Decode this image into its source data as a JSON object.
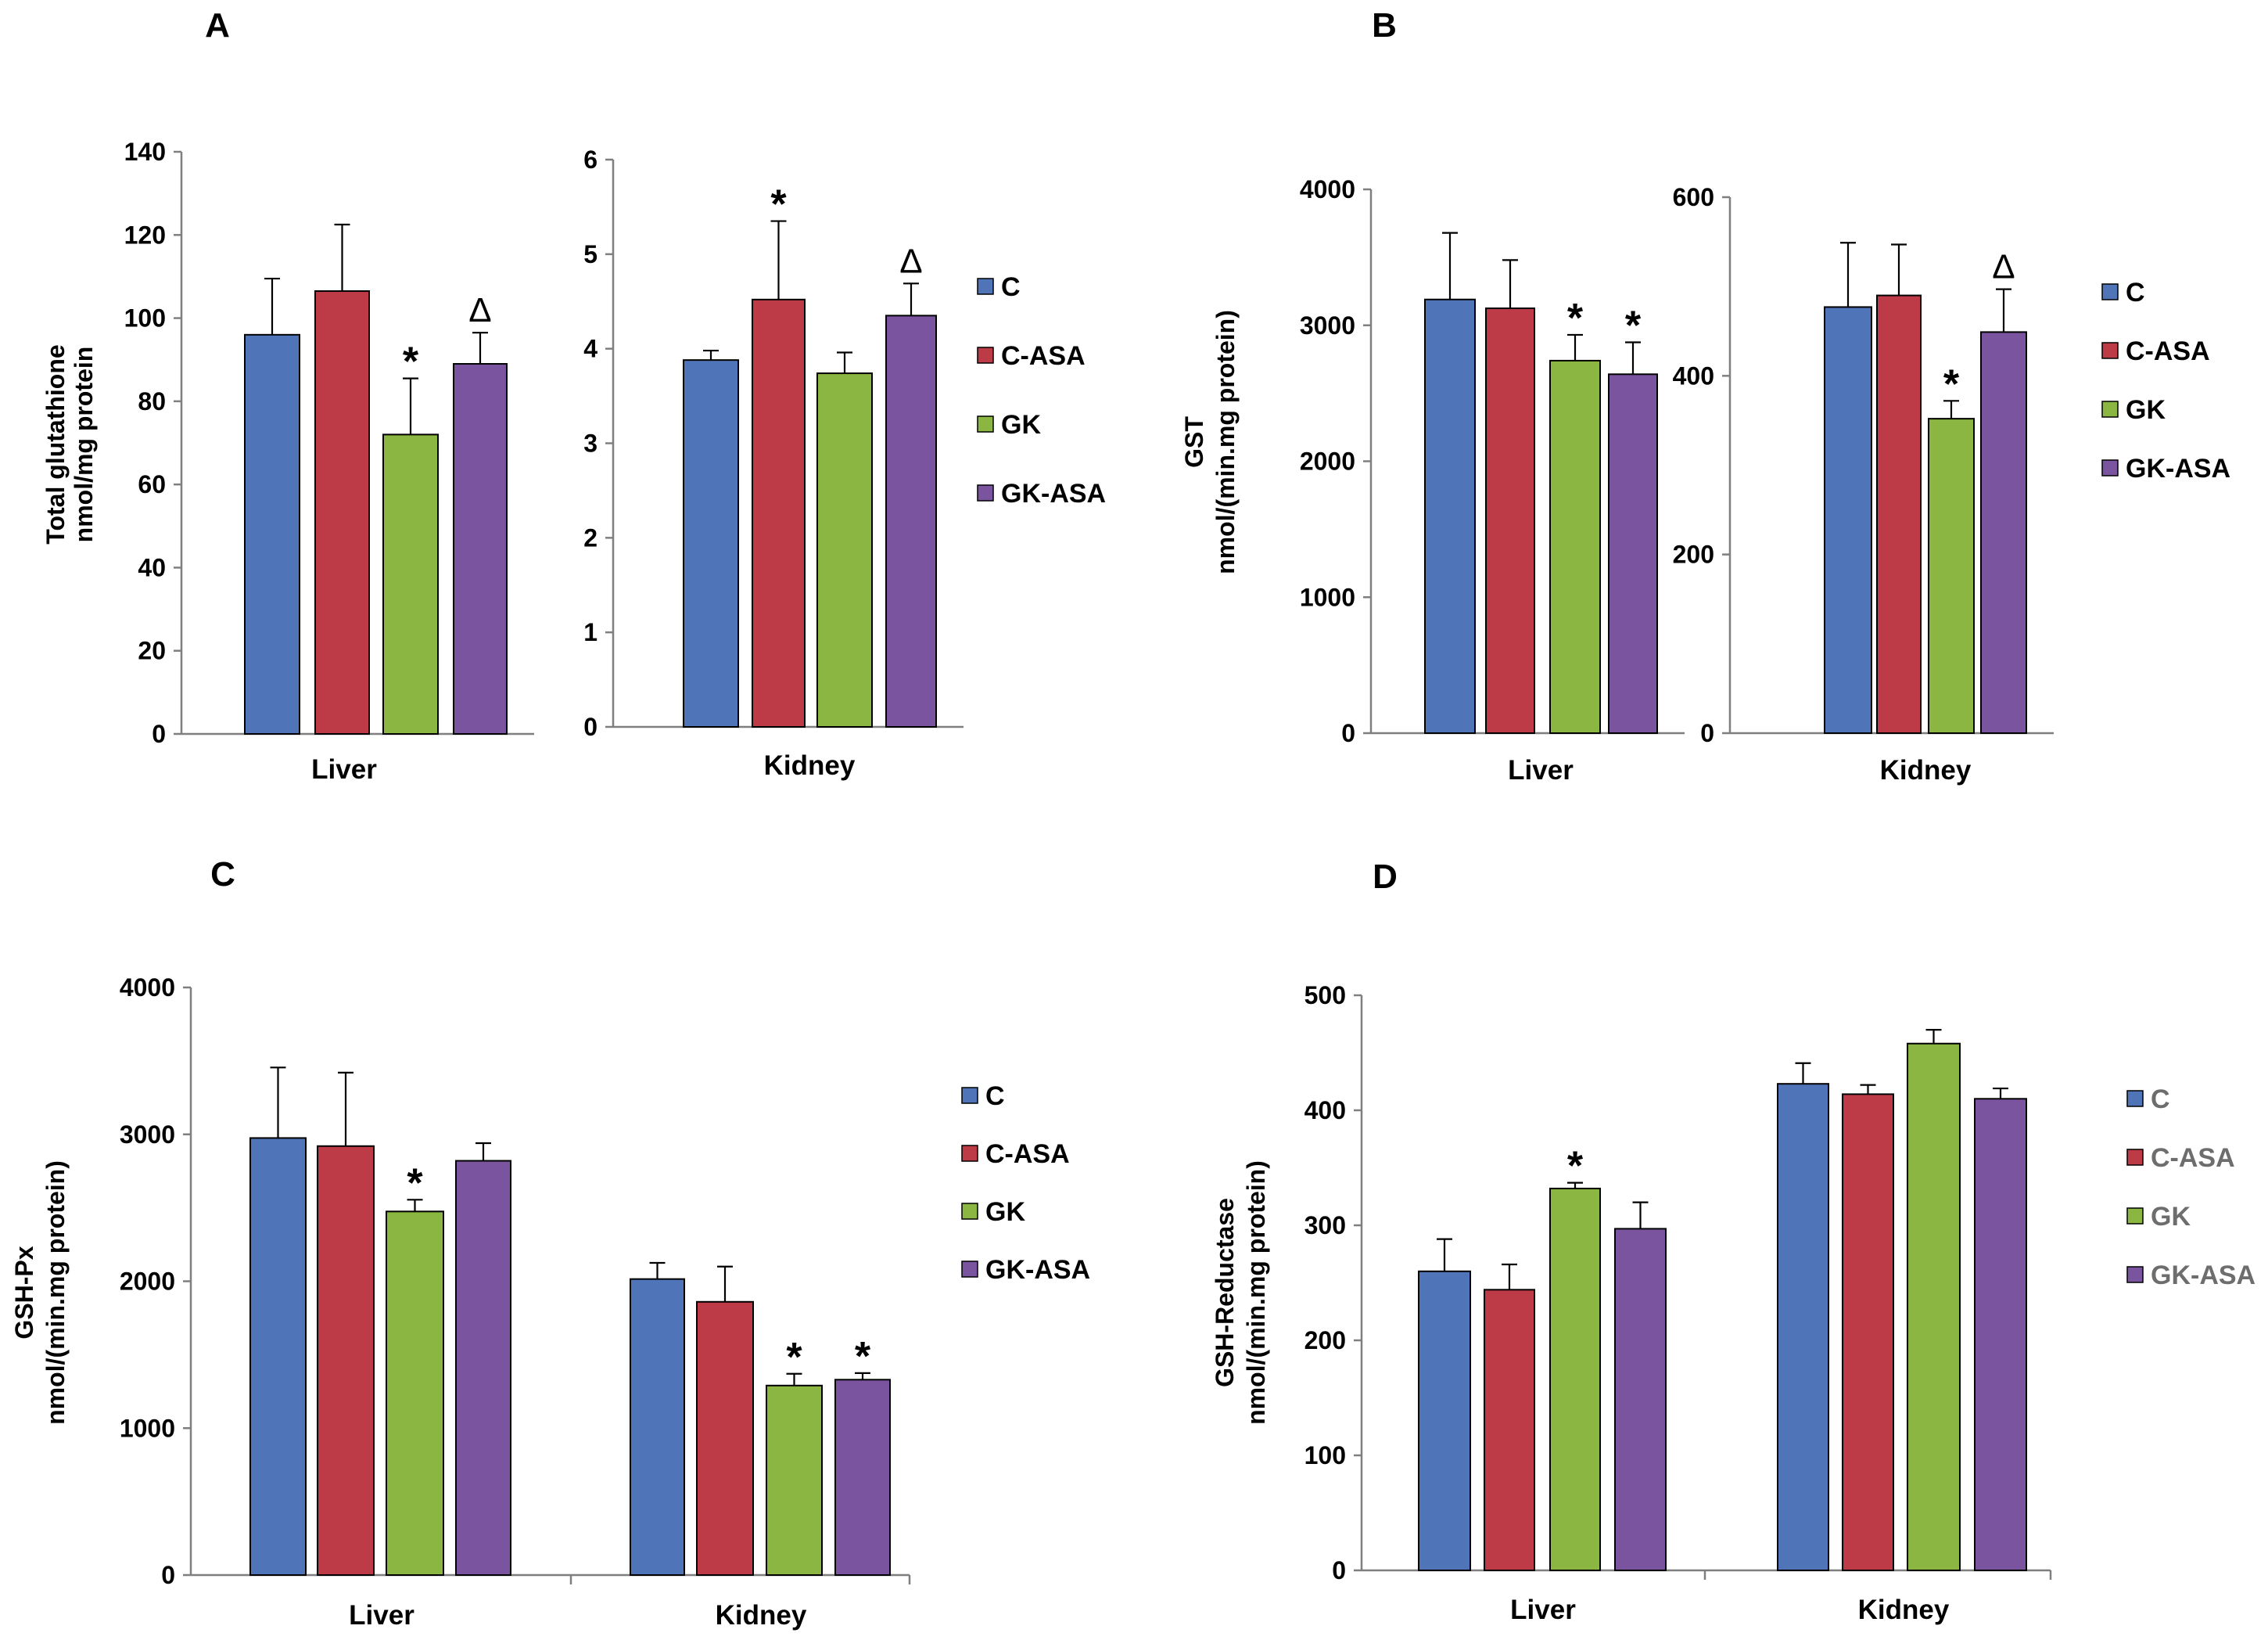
{
  "series_colors": {
    "C": "#4f75b8",
    "C-ASA": "#bd3b47",
    "GK": "#8bb641",
    "GK-ASA": "#7b54a0"
  },
  "chart_data": [
    {
      "panel": "A",
      "type": "bar",
      "ylabel": [
        "Total glutathione",
        "nmol/mg protein"
      ],
      "legend": {
        "placement": "right",
        "entries": [
          "C",
          "C-ASA",
          "GK",
          "GK-ASA"
        ]
      },
      "subplots": [
        {
          "category": "Liver",
          "ylim": [
            0,
            140
          ],
          "yticks": [
            0,
            20,
            40,
            60,
            80,
            100,
            120,
            140
          ],
          "series": [
            {
              "name": "C",
              "value": 96,
              "error": 13.5
            },
            {
              "name": "C-ASA",
              "value": 106.5,
              "error": 16
            },
            {
              "name": "GK",
              "value": 72,
              "error": 13.5,
              "mark": "*"
            },
            {
              "name": "GK-ASA",
              "value": 89,
              "error": 7.5,
              "mark": "Δ"
            }
          ]
        },
        {
          "category": "Kidney",
          "ylim": [
            0,
            6
          ],
          "yticks": [
            0,
            1,
            2,
            3,
            4,
            5,
            6
          ],
          "series": [
            {
              "name": "C",
              "value": 3.88,
              "error": 0.1
            },
            {
              "name": "C-ASA",
              "value": 4.52,
              "error": 0.83,
              "mark": "*"
            },
            {
              "name": "GK",
              "value": 3.74,
              "error": 0.22
            },
            {
              "name": "GK-ASA",
              "value": 4.35,
              "error": 0.34,
              "mark": "Δ"
            }
          ]
        }
      ]
    },
    {
      "panel": "B",
      "type": "bar",
      "ylabel": [
        "GST",
        "nmol/(min.mg protein)"
      ],
      "legend": {
        "placement": "right",
        "entries": [
          "C",
          "C-ASA",
          "GK",
          "GK-ASA"
        ]
      },
      "subplots": [
        {
          "category": "Liver",
          "ylim": [
            0,
            4000
          ],
          "yticks": [
            0,
            1000,
            2000,
            3000,
            4000
          ],
          "series": [
            {
              "name": "C",
              "value": 3190,
              "error": 490
            },
            {
              "name": "C-ASA",
              "value": 3125,
              "error": 355
            },
            {
              "name": "GK",
              "value": 2740,
              "error": 190,
              "mark": "*"
            },
            {
              "name": "GK-ASA",
              "value": 2640,
              "error": 235,
              "mark": "*"
            }
          ]
        },
        {
          "category": "Kidney",
          "ylim": [
            0,
            600
          ],
          "yticks": [
            0,
            200,
            400,
            600
          ],
          "series": [
            {
              "name": "C",
              "value": 477,
              "error": 72
            },
            {
              "name": "C-ASA",
              "value": 490,
              "error": 57
            },
            {
              "name": "GK",
              "value": 352,
              "error": 20,
              "mark": "*"
            },
            {
              "name": "GK-ASA",
              "value": 449,
              "error": 48,
              "mark": "Δ"
            }
          ]
        }
      ]
    },
    {
      "panel": "C",
      "type": "bar",
      "ylabel": [
        "GSH-Px",
        "nmol/(min.mg protein)"
      ],
      "legend": {
        "placement": "right",
        "entries": [
          "C",
          "C-ASA",
          "GK",
          "GK-ASA"
        ]
      },
      "ylim": [
        0,
        4000
      ],
      "yticks": [
        0,
        1000,
        2000,
        3000,
        4000
      ],
      "categories": [
        "Liver",
        "Kidney"
      ],
      "series": [
        {
          "name": "C",
          "values": [
            2975,
            2015
          ],
          "errors": [
            480,
            110
          ],
          "marks": [
            "",
            ""
          ]
        },
        {
          "name": "C-ASA",
          "values": [
            2920,
            1860
          ],
          "errors": [
            500,
            240
          ],
          "marks": [
            "",
            ""
          ]
        },
        {
          "name": "GK",
          "values": [
            2475,
            1290
          ],
          "errors": [
            80,
            80
          ],
          "marks": [
            "*",
            "*"
          ]
        },
        {
          "name": "GK-ASA",
          "values": [
            2820,
            1330
          ],
          "errors": [
            120,
            45
          ],
          "marks": [
            "",
            "*"
          ]
        }
      ]
    },
    {
      "panel": "D",
      "type": "bar",
      "ylabel": [
        "GSH-Reductase",
        "nmol/(min.mg protein)"
      ],
      "legend": {
        "placement": "right",
        "entries": [
          "C",
          "C-ASA",
          "GK",
          "GK-ASA"
        ],
        "text_color": "#6d6d6d"
      },
      "ylim": [
        0,
        500
      ],
      "yticks": [
        0,
        100,
        200,
        300,
        400,
        500
      ],
      "categories": [
        "Liver",
        "Kidney"
      ],
      "series": [
        {
          "name": "C",
          "values": [
            260,
            423
          ],
          "errors": [
            28,
            18
          ],
          "marks": [
            "",
            ""
          ]
        },
        {
          "name": "C-ASA",
          "values": [
            244,
            414
          ],
          "errors": [
            22,
            8
          ],
          "marks": [
            "",
            ""
          ]
        },
        {
          "name": "GK",
          "values": [
            332,
            458
          ],
          "errors": [
            5,
            12
          ],
          "marks": [
            "*",
            ""
          ]
        },
        {
          "name": "GK-ASA",
          "values": [
            297,
            410
          ],
          "errors": [
            23,
            9
          ],
          "marks": [
            "",
            ""
          ]
        }
      ]
    }
  ]
}
